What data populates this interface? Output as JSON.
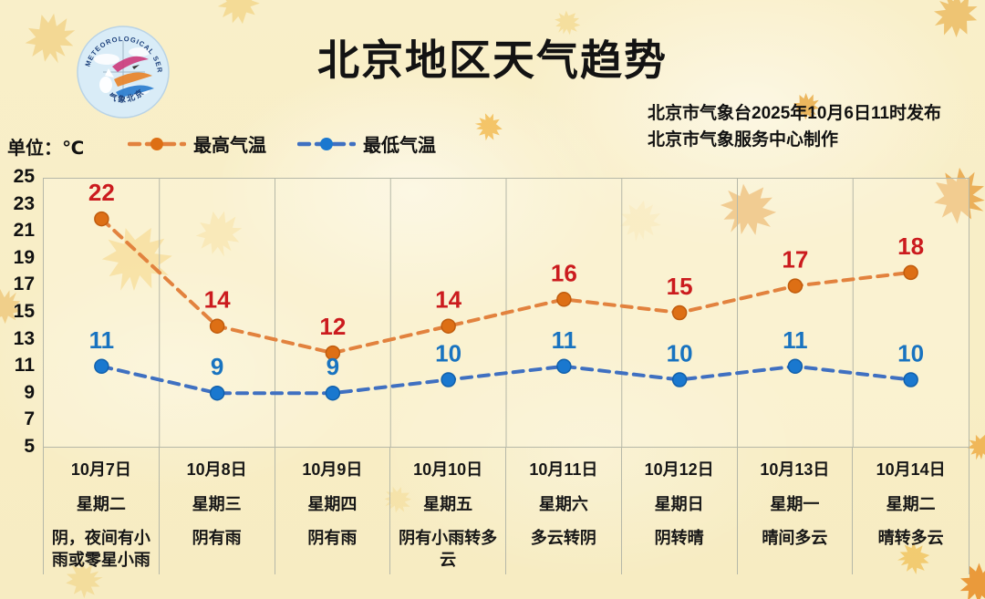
{
  "header": {
    "title": "北京地区天气趋势",
    "issued_line1": "北京市气象台2025年10月6日11时发布",
    "issued_line2": "北京市气象服务中心制作",
    "logo": {
      "ring_text_top": "METEOROLOGICAL SERVICE",
      "ring_text_bottom": "气象北京"
    }
  },
  "unit_label": "单位：℃",
  "legend": [
    {
      "label": "最高气温",
      "line_color": "#e2823e",
      "marker_color": "#dd6f15"
    },
    {
      "label": "最低气温",
      "line_color": "#3f70c1",
      "marker_color": "#1a78cf"
    }
  ],
  "colors": {
    "high_value_label": "#cb1b1e",
    "low_value_label": "#1873c0",
    "grid": "#b6b8a8",
    "background": "#f8eec6"
  },
  "chart_data": {
    "type": "line",
    "title": "北京地区天气趋势",
    "ylabel": "℃",
    "ylim": [
      5,
      25
    ],
    "y_ticks": [
      25,
      23,
      21,
      19,
      17,
      15,
      13,
      11,
      9,
      7,
      5
    ],
    "grid": "vertical-only",
    "legend_position": "top-left",
    "categories": [
      "10月7日",
      "10月8日",
      "10月9日",
      "10月10日",
      "10月11日",
      "10月12日",
      "10月13日",
      "10月14日"
    ],
    "weekdays": [
      "星期二",
      "星期三",
      "星期四",
      "星期五",
      "星期六",
      "星期日",
      "星期一",
      "星期二"
    ],
    "weather": [
      "阴，夜间有小雨或零星小雨",
      "阴有雨",
      "阴有雨",
      "阴有小雨转多云",
      "多云转阴",
      "阴转晴",
      "晴间多云",
      "晴转多云"
    ],
    "series": [
      {
        "name": "最高气温",
        "values": [
          22,
          14,
          12,
          14,
          16,
          15,
          17,
          18
        ],
        "line_color": "#e2823e",
        "marker_color": "#dd6f15",
        "marker_edge": "#c05c0d",
        "label_color": "#cb1b1e"
      },
      {
        "name": "最低气温",
        "values": [
          11,
          9,
          9,
          10,
          11,
          10,
          11,
          10
        ],
        "line_color": "#3f70c1",
        "marker_color": "#1a78cf",
        "marker_edge": "#1160ab",
        "label_color": "#1873c0"
      }
    ]
  }
}
